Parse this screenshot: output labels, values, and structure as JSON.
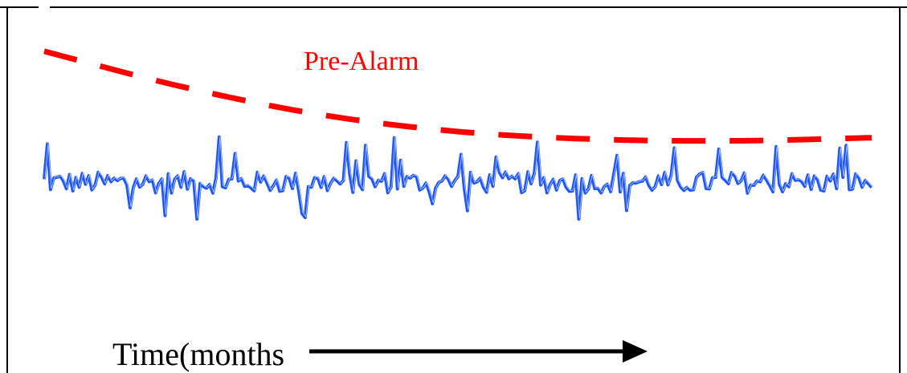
{
  "chart_data": {
    "type": "line",
    "xlabel": "Time(months",
    "annotations": [
      {
        "text": "Pre-Alarm",
        "color": "#ff0000"
      }
    ],
    "grid": false,
    "series": [
      {
        "name": "Pre-Alarm",
        "color": "#ff0000",
        "style": "dashed",
        "x": [
          0,
          2,
          4,
          6,
          8,
          10,
          12
        ],
        "values": [
          0.85,
          0.62,
          0.44,
          0.33,
          0.28,
          0.27,
          0.29
        ]
      },
      {
        "color": "#1e56ff",
        "style": "solid-noisy",
        "x_range": [
          0,
          12
        ],
        "baseline": 0.0
      }
    ],
    "xlim": [
      0,
      12
    ],
    "ylim": [
      -1,
      1
    ]
  },
  "colors": {
    "frame": "#000000",
    "threshold": "#ff0000",
    "signal": "#1e56ff",
    "arrow": "#000000"
  }
}
